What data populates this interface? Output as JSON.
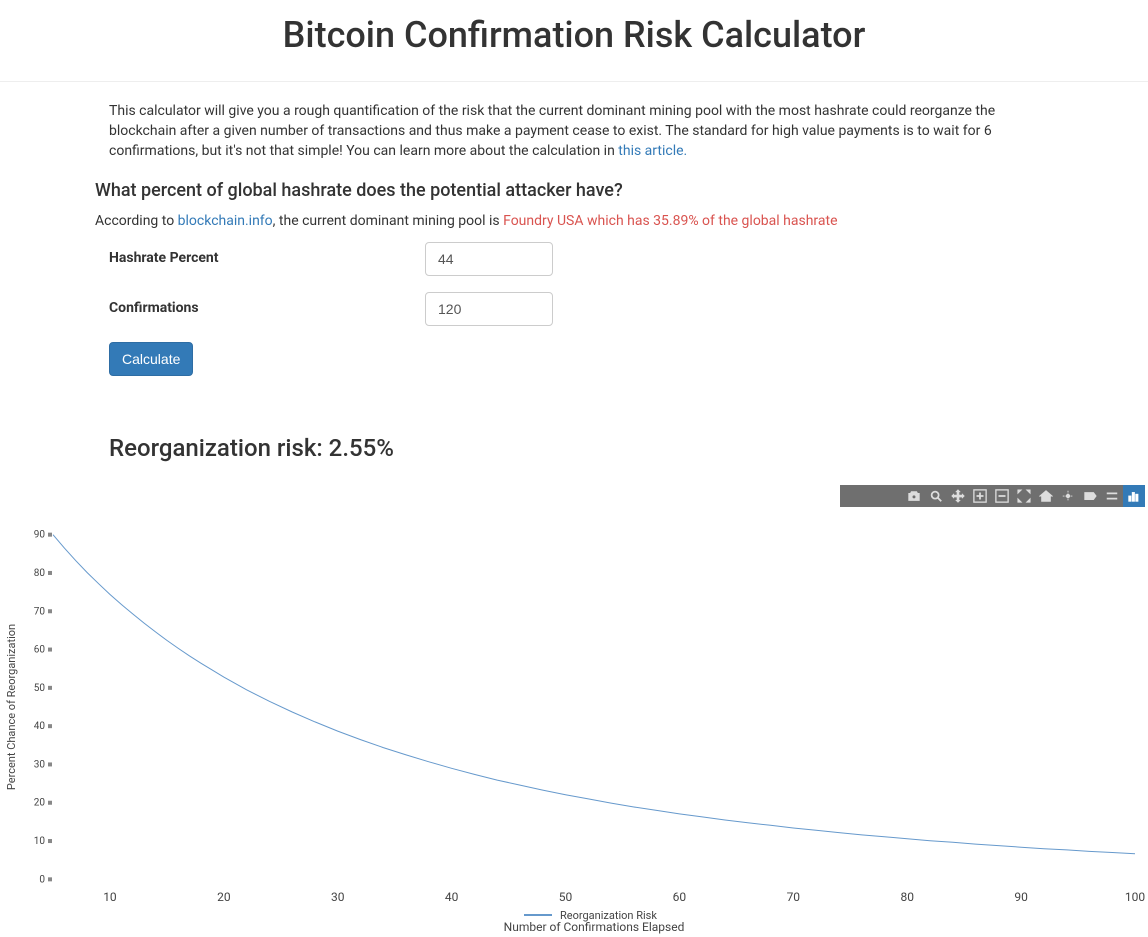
{
  "header": {
    "title": "Bitcoin Confirmation Risk Calculator"
  },
  "intro": {
    "text": "This calculator will give you a rough quantification of the risk that the current dominant mining pool with the most hashrate could reorganze the blockchain after a given number of transactions and thus make a payment cease to exist. The standard for high value payments is to wait for 6 confirmations, but it's not that simple! You can learn more about the calculation in ",
    "link_text": "this article."
  },
  "section": {
    "question": "What percent of global hashrate does the potential attacker have?",
    "prefix": "According to ",
    "source_link": "blockchain.info",
    "midfix": ", the current dominant mining pool is ",
    "highlight": "Foundry USA which has 35.89% of the global hashrate"
  },
  "form": {
    "hashrate_label": "Hashrate Percent",
    "hashrate_value": "44",
    "confirmations_label": "Confirmations",
    "confirmations_value": "120",
    "calculate_label": "Calculate"
  },
  "result": {
    "label": "Reorganization risk: 2.55%"
  },
  "chart": {
    "type": "line",
    "legend_label": "Reorganization Risk",
    "xlabel": "Number of Confirmations Elapsed",
    "ylabel": "Percent Chance of Reorganization",
    "background_color": "#ffffff",
    "line_color": "#6699cc",
    "line_width": 1,
    "axis_text_color": "#444444",
    "axis_font_size": 10,
    "tick_mark_color": "#888888",
    "toolbar_bg": "#6f6f6f",
    "toolbar_icon_color": "#dddddd",
    "toolbar_active_bg": "#337ab7",
    "x_ticks": [
      10,
      20,
      30,
      40,
      50,
      60,
      70,
      80,
      90,
      100
    ],
    "y_ticks": [
      0,
      10,
      20,
      30,
      40,
      50,
      60,
      70,
      80,
      90
    ],
    "xlim": [
      5,
      100
    ],
    "ylim": [
      -2,
      92
    ],
    "data": [
      {
        "x": 5,
        "y": 90
      },
      {
        "x": 6,
        "y": 86.5
      },
      {
        "x": 7,
        "y": 83.2
      },
      {
        "x": 8,
        "y": 80.1
      },
      {
        "x": 9,
        "y": 77.2
      },
      {
        "x": 10,
        "y": 74.4
      },
      {
        "x": 11,
        "y": 71.8
      },
      {
        "x": 12,
        "y": 69.3
      },
      {
        "x": 13,
        "y": 66.9
      },
      {
        "x": 14,
        "y": 64.6
      },
      {
        "x": 15,
        "y": 62.4
      },
      {
        "x": 16,
        "y": 60.3
      },
      {
        "x": 17,
        "y": 58.3
      },
      {
        "x": 18,
        "y": 56.4
      },
      {
        "x": 19,
        "y": 54.6
      },
      {
        "x": 20,
        "y": 52.8
      },
      {
        "x": 22,
        "y": 49.5
      },
      {
        "x": 24,
        "y": 46.5
      },
      {
        "x": 26,
        "y": 43.7
      },
      {
        "x": 28,
        "y": 41.1
      },
      {
        "x": 30,
        "y": 38.7
      },
      {
        "x": 32,
        "y": 36.5
      },
      {
        "x": 34,
        "y": 34.4
      },
      {
        "x": 36,
        "y": 32.5
      },
      {
        "x": 38,
        "y": 30.7
      },
      {
        "x": 40,
        "y": 29.0
      },
      {
        "x": 42,
        "y": 27.4
      },
      {
        "x": 44,
        "y": 25.9
      },
      {
        "x": 46,
        "y": 24.6
      },
      {
        "x": 48,
        "y": 23.3
      },
      {
        "x": 50,
        "y": 22.1
      },
      {
        "x": 52,
        "y": 21.0
      },
      {
        "x": 54,
        "y": 19.9
      },
      {
        "x": 56,
        "y": 18.9
      },
      {
        "x": 58,
        "y": 18.0
      },
      {
        "x": 60,
        "y": 17.1
      },
      {
        "x": 62,
        "y": 16.3
      },
      {
        "x": 64,
        "y": 15.5
      },
      {
        "x": 66,
        "y": 14.8
      },
      {
        "x": 68,
        "y": 14.1
      },
      {
        "x": 70,
        "y": 13.4
      },
      {
        "x": 72,
        "y": 12.8
      },
      {
        "x": 74,
        "y": 12.2
      },
      {
        "x": 76,
        "y": 11.6
      },
      {
        "x": 78,
        "y": 11.1
      },
      {
        "x": 80,
        "y": 10.6
      },
      {
        "x": 82,
        "y": 10.1
      },
      {
        "x": 84,
        "y": 9.7
      },
      {
        "x": 86,
        "y": 9.2
      },
      {
        "x": 88,
        "y": 8.8
      },
      {
        "x": 90,
        "y": 8.4
      },
      {
        "x": 92,
        "y": 8.0
      },
      {
        "x": 94,
        "y": 7.7
      },
      {
        "x": 96,
        "y": 7.3
      },
      {
        "x": 98,
        "y": 7.0
      },
      {
        "x": 100,
        "y": 6.7
      }
    ]
  },
  "toolbar": {
    "items": [
      {
        "name": "camera-icon"
      },
      {
        "name": "zoom-icon"
      },
      {
        "name": "pan-icon"
      },
      {
        "name": "plus-icon"
      },
      {
        "name": "minus-icon"
      },
      {
        "name": "expand-icon"
      },
      {
        "name": "home-icon"
      },
      {
        "name": "spike-icon"
      },
      {
        "name": "tag-icon"
      },
      {
        "name": "lines-icon"
      },
      {
        "name": "plotly-icon"
      }
    ],
    "active_index": 10
  }
}
